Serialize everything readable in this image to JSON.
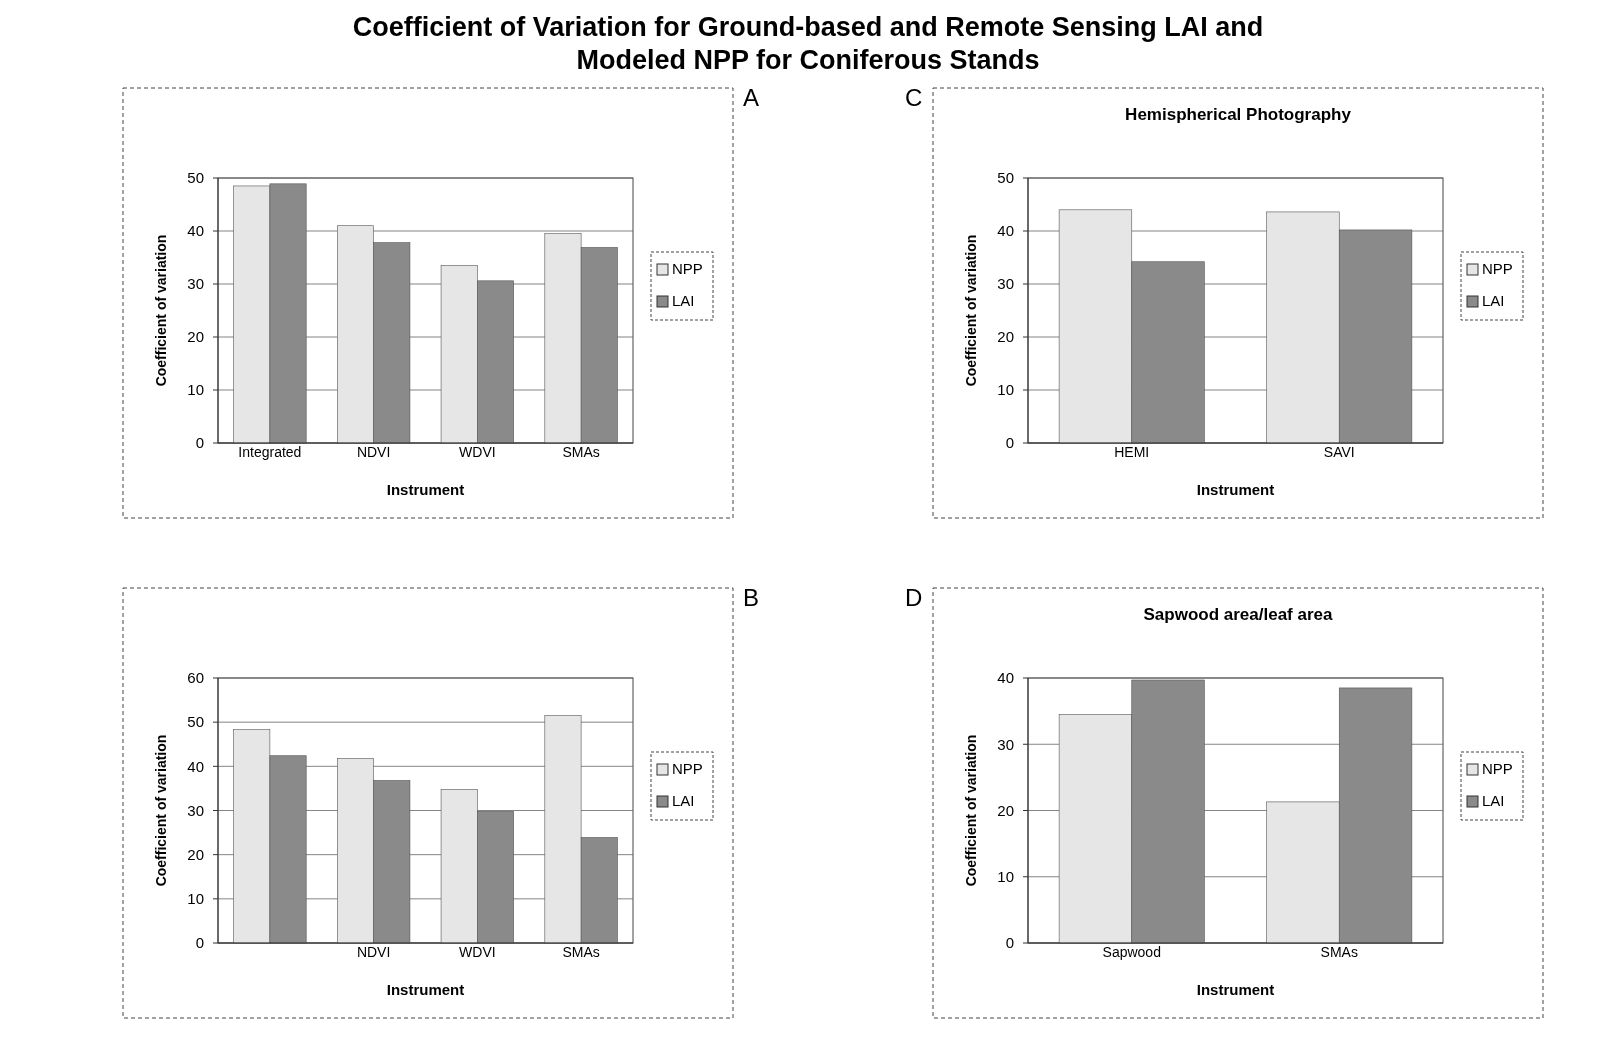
{
  "chart_data": [
    {
      "type": "bar",
      "categories": [
        "Integrated",
        "NDVI",
        "WDVI",
        "SMAs"
      ],
      "xlabel": "Instrument",
      "ylabel": "Coefficient of variation",
      "ylim": [
        0,
        50
      ],
      "yticks": [
        0,
        10,
        20,
        30,
        40,
        50
      ],
      "grid": "y",
      "legend": "right",
      "annotations": [
        "Coefficient of Variation for Ground-based and Remote Sensing LAI and",
        "Modeled NPP for Coniferous Stands",
        "A"
      ],
      "series": [
        {
          "name": "NPP",
          "color": "#e6e6e6",
          "values": [
            48.5,
            41,
            33.5,
            39.5
          ]
        },
        {
          "name": "LAI",
          "color": "#8a8a8a",
          "values": [
            48.9,
            37.8,
            30.6,
            36.9
          ]
        }
      ]
    },
    {
      "type": "bar",
      "title": "Hemispherical Photography",
      "categories": [
        "HEMI",
        "SAVI"
      ],
      "xlabel": "Instrument",
      "ylabel": "Coefficient of variation",
      "ylim": [
        0,
        50
      ],
      "yticks": [
        0,
        10,
        20,
        30,
        40,
        50
      ],
      "grid": "y",
      "legend": "right",
      "annotations": [
        "C"
      ],
      "series": [
        {
          "name": "NPP",
          "color": "#e6e6e6",
          "values": [
            44,
            43.6
          ]
        },
        {
          "name": "LAI",
          "color": "#8a8a8a",
          "values": [
            34.2,
            40.2
          ]
        }
      ]
    },
    {
      "type": "bar",
      "categories": [
        null,
        "NDVI",
        "WDVI",
        "SMAs"
      ],
      "xlabel": "Instrument",
      "ylabel": "Coefficient of variation",
      "ylim": [
        0,
        60
      ],
      "yticks": [
        0,
        10,
        20,
        30,
        40,
        50,
        60
      ],
      "grid": "y",
      "legend": "right",
      "annotations": [
        "B"
      ],
      "series": [
        {
          "name": "NPP",
          "color": "#e6e6e6",
          "values": [
            48.3,
            41.8,
            34.8,
            51.5
          ]
        },
        {
          "name": "LAI",
          "color": "#8a8a8a",
          "values": [
            42.4,
            36.8,
            29.8,
            23.9
          ]
        }
      ]
    },
    {
      "type": "bar",
      "title": "Sapwood area/leaf area",
      "categories": [
        "Sapwood",
        "SMAs"
      ],
      "xlabel": "Instrument",
      "ylabel": "Coefficient of variation",
      "ylim": [
        0,
        40
      ],
      "yticks": [
        0,
        10,
        20,
        30,
        40
      ],
      "grid": "y",
      "legend": "right",
      "annotations": [
        "D"
      ],
      "series": [
        {
          "name": "NPP",
          "color": "#e6e6e6",
          "values": [
            34.5,
            21.3
          ]
        },
        {
          "name": "LAI",
          "color": "#8a8a8a",
          "values": [
            39.7,
            38.5
          ]
        }
      ]
    }
  ]
}
